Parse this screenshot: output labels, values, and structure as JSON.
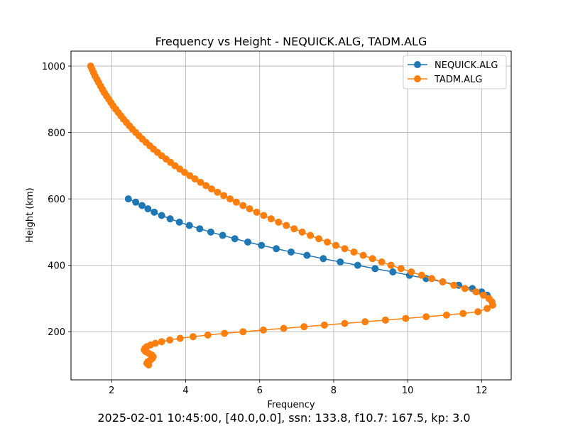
{
  "chart_data": {
    "type": "line",
    "title": "Frequency vs Height - NEQUICK.ALG, TADM.ALG",
    "xlabel": "Frequency",
    "ylabel": "Height (km)",
    "caption": "2025-02-01 10:45:00, [40.0,0.0], ssn: 133.8, f10.7: 167.5, kp: 3.0",
    "xlim": [
      0.9,
      12.8
    ],
    "ylim": [
      55,
      1045
    ],
    "xticks": [
      2,
      4,
      6,
      8,
      10,
      12
    ],
    "yticks": [
      200,
      400,
      600,
      800,
      1000
    ],
    "grid": true,
    "legend_position": "upper right",
    "series": [
      {
        "name": "NEQUICK.ALG",
        "color": "#1f77b4",
        "points": [
          [
            2.45,
            600
          ],
          [
            2.65,
            590
          ],
          [
            2.82,
            580
          ],
          [
            2.98,
            570
          ],
          [
            3.15,
            560
          ],
          [
            3.35,
            550
          ],
          [
            3.58,
            540
          ],
          [
            3.83,
            530
          ],
          [
            4.1,
            520
          ],
          [
            4.38,
            510
          ],
          [
            4.68,
            500
          ],
          [
            5.0,
            490
          ],
          [
            5.33,
            480
          ],
          [
            5.68,
            470
          ],
          [
            6.05,
            460
          ],
          [
            6.45,
            450
          ],
          [
            6.85,
            440
          ],
          [
            7.28,
            430
          ],
          [
            7.72,
            420
          ],
          [
            8.18,
            410
          ],
          [
            8.65,
            400
          ],
          [
            9.12,
            390
          ],
          [
            9.6,
            380
          ],
          [
            10.05,
            370
          ],
          [
            10.5,
            360
          ],
          [
            10.95,
            350
          ],
          [
            11.38,
            340
          ],
          [
            11.75,
            330
          ],
          [
            12.0,
            320
          ],
          [
            12.15,
            310
          ],
          [
            12.2,
            300
          ]
        ]
      },
      {
        "name": "TADM.ALG",
        "color": "#ff7f0e",
        "points": [
          [
            1.43,
            1000
          ],
          [
            1.47,
            990
          ],
          [
            1.51,
            980
          ],
          [
            1.55,
            970
          ],
          [
            1.6,
            960
          ],
          [
            1.65,
            950
          ],
          [
            1.7,
            940
          ],
          [
            1.75,
            930
          ],
          [
            1.8,
            920
          ],
          [
            1.86,
            910
          ],
          [
            1.92,
            900
          ],
          [
            1.98,
            890
          ],
          [
            2.04,
            880
          ],
          [
            2.11,
            870
          ],
          [
            2.18,
            860
          ],
          [
            2.25,
            850
          ],
          [
            2.32,
            840
          ],
          [
            2.4,
            830
          ],
          [
            2.48,
            820
          ],
          [
            2.56,
            810
          ],
          [
            2.65,
            800
          ],
          [
            2.74,
            790
          ],
          [
            2.83,
            780
          ],
          [
            2.93,
            770
          ],
          [
            3.03,
            760
          ],
          [
            3.13,
            750
          ],
          [
            3.24,
            740
          ],
          [
            3.35,
            730
          ],
          [
            3.47,
            720
          ],
          [
            3.59,
            710
          ],
          [
            3.71,
            700
          ],
          [
            3.84,
            690
          ],
          [
            3.97,
            680
          ],
          [
            4.11,
            670
          ],
          [
            4.25,
            660
          ],
          [
            4.4,
            650
          ],
          [
            4.55,
            640
          ],
          [
            4.7,
            630
          ],
          [
            4.86,
            620
          ],
          [
            5.03,
            610
          ],
          [
            5.2,
            600
          ],
          [
            5.37,
            590
          ],
          [
            5.55,
            580
          ],
          [
            5.73,
            570
          ],
          [
            5.92,
            560
          ],
          [
            6.11,
            550
          ],
          [
            6.31,
            540
          ],
          [
            6.51,
            530
          ],
          [
            6.72,
            520
          ],
          [
            6.93,
            510
          ],
          [
            7.15,
            500
          ],
          [
            7.37,
            490
          ],
          [
            7.6,
            480
          ],
          [
            7.83,
            470
          ],
          [
            8.06,
            460
          ],
          [
            8.3,
            450
          ],
          [
            8.55,
            440
          ],
          [
            8.8,
            430
          ],
          [
            9.05,
            420
          ],
          [
            9.3,
            410
          ],
          [
            9.55,
            400
          ],
          [
            9.82,
            390
          ],
          [
            10.1,
            380
          ],
          [
            10.38,
            370
          ],
          [
            10.65,
            360
          ],
          [
            10.95,
            350
          ],
          [
            11.25,
            340
          ],
          [
            11.55,
            330
          ],
          [
            11.85,
            320
          ],
          [
            12.05,
            310
          ],
          [
            12.2,
            300
          ],
          [
            12.28,
            290
          ],
          [
            12.3,
            280
          ],
          [
            12.15,
            270
          ],
          [
            11.9,
            260
          ],
          [
            11.5,
            255
          ],
          [
            11.05,
            250
          ],
          [
            10.5,
            245
          ],
          [
            9.95,
            240
          ],
          [
            9.4,
            235
          ],
          [
            8.85,
            230
          ],
          [
            8.3,
            225
          ],
          [
            7.75,
            220
          ],
          [
            7.2,
            215
          ],
          [
            6.65,
            210
          ],
          [
            6.1,
            205
          ],
          [
            5.55,
            200
          ],
          [
            5.05,
            195
          ],
          [
            4.6,
            190
          ],
          [
            4.2,
            185
          ],
          [
            3.85,
            180
          ],
          [
            3.57,
            175
          ],
          [
            3.35,
            170
          ],
          [
            3.18,
            165
          ],
          [
            3.05,
            160
          ],
          [
            2.95,
            155
          ],
          [
            2.9,
            150
          ],
          [
            2.88,
            145
          ],
          [
            2.92,
            140
          ],
          [
            3.0,
            135
          ],
          [
            3.08,
            130
          ],
          [
            3.12,
            125
          ],
          [
            3.1,
            120
          ],
          [
            3.05,
            115
          ],
          [
            2.98,
            110
          ],
          [
            2.95,
            105
          ],
          [
            3.0,
            100
          ]
        ]
      }
    ]
  }
}
